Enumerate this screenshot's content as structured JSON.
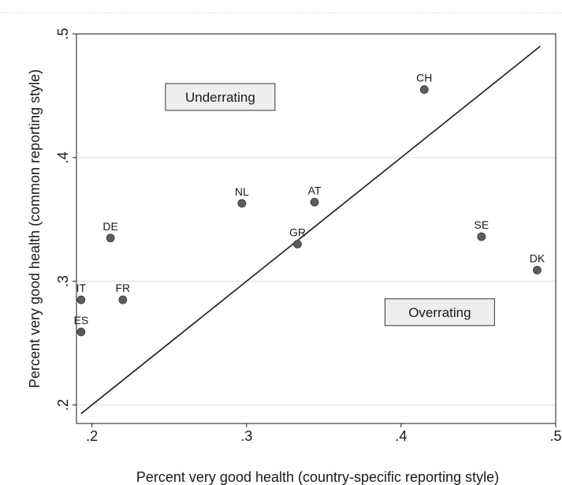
{
  "chart_data": {
    "type": "scatter",
    "xlabel": "Percent very good health (country-specific reporting style)",
    "ylabel": "Percent very good health (common reporting style)",
    "xlim": [
      0.19,
      0.5
    ],
    "ylim": [
      0.185,
      0.5
    ],
    "x_ticks": [
      {
        "value": 0.2,
        "label": ".2"
      },
      {
        "value": 0.3,
        "label": ".3"
      },
      {
        "value": 0.4,
        "label": ".4"
      },
      {
        "value": 0.5,
        "label": ".5"
      }
    ],
    "y_ticks": [
      {
        "value": 0.2,
        "label": ".2"
      },
      {
        "value": 0.3,
        "label": ".3"
      },
      {
        "value": 0.4,
        "label": ".4"
      },
      {
        "value": 0.5,
        "label": ".5"
      }
    ],
    "grid": "horizontal",
    "points": [
      {
        "label": "CH",
        "x": 0.415,
        "y": 0.455
      },
      {
        "label": "NL",
        "x": 0.297,
        "y": 0.363
      },
      {
        "label": "AT",
        "x": 0.344,
        "y": 0.364
      },
      {
        "label": "DE",
        "x": 0.212,
        "y": 0.335
      },
      {
        "label": "GR",
        "x": 0.333,
        "y": 0.33
      },
      {
        "label": "SE",
        "x": 0.452,
        "y": 0.336
      },
      {
        "label": "DK",
        "x": 0.488,
        "y": 0.309
      },
      {
        "label": "IT",
        "x": 0.193,
        "y": 0.285
      },
      {
        "label": "FR",
        "x": 0.22,
        "y": 0.285
      },
      {
        "label": "ES",
        "x": 0.193,
        "y": 0.259
      }
    ],
    "reference_line": {
      "x": [
        0.193,
        0.49
      ],
      "y": [
        0.193,
        0.49
      ]
    },
    "annotations": [
      {
        "text": "Underrating",
        "x": 0.283,
        "y": 0.449
      },
      {
        "text": "Overrating",
        "x": 0.425,
        "y": 0.275
      }
    ],
    "colors": {
      "marker": "#5c5c5c",
      "line": "#1a1a1a",
      "grid": "#dcdcdc",
      "box_fill": "#eeeeee"
    }
  }
}
